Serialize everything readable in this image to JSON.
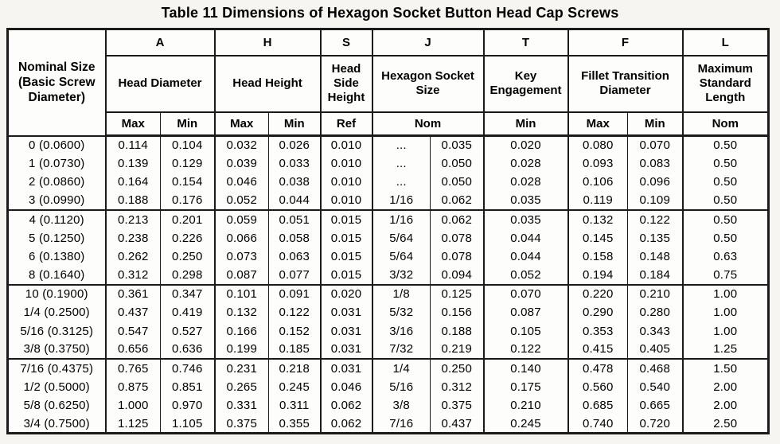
{
  "title": "Table 11 Dimensions of Hexagon Socket Button Head Cap Screws",
  "colors": {
    "border": "#1b1b1b",
    "text": "#000000",
    "page_background": "#f6f5f2",
    "cell_background": "#fdfdfc"
  },
  "table": {
    "header": {
      "nominal_label": "Nominal Size (Basic Screw Diameter)",
      "letters": [
        "A",
        "H",
        "S",
        "J",
        "T",
        "F",
        "L"
      ],
      "group_labels": [
        "Head Diameter",
        "Head Height",
        "Head Side Height",
        "Hexagon Socket Size",
        "Key Engagement",
        "Fillet Transition Diameter",
        "Maximum Standard Length"
      ],
      "sub_labels": [
        "Max",
        "Min",
        "Max",
        "Min",
        "Ref",
        "Nom",
        "Min",
        "Max",
        "Min",
        "Nom"
      ]
    },
    "groups": [
      {
        "rows": [
          [
            "0 (0.0600)",
            "0.114",
            "0.104",
            "0.032",
            "0.026",
            "0.010",
            "...",
            "0.035",
            "0.020",
            "0.080",
            "0.070",
            "0.50"
          ],
          [
            "1 (0.0730)",
            "0.139",
            "0.129",
            "0.039",
            "0.033",
            "0.010",
            "...",
            "0.050",
            "0.028",
            "0.093",
            "0.083",
            "0.50"
          ],
          [
            "2 (0.0860)",
            "0.164",
            "0.154",
            "0.046",
            "0.038",
            "0.010",
            "...",
            "0.050",
            "0.028",
            "0.106",
            "0.096",
            "0.50"
          ],
          [
            "3 (0.0990)",
            "0.188",
            "0.176",
            "0.052",
            "0.044",
            "0.010",
            "1/16",
            "0.062",
            "0.035",
            "0.119",
            "0.109",
            "0.50"
          ]
        ]
      },
      {
        "rows": [
          [
            "4 (0.1120)",
            "0.213",
            "0.201",
            "0.059",
            "0.051",
            "0.015",
            "1/16",
            "0.062",
            "0.035",
            "0.132",
            "0.122",
            "0.50"
          ],
          [
            "5 (0.1250)",
            "0.238",
            "0.226",
            "0.066",
            "0.058",
            "0.015",
            "5/64",
            "0.078",
            "0.044",
            "0.145",
            "0.135",
            "0.50"
          ],
          [
            "6 (0.1380)",
            "0.262",
            "0.250",
            "0.073",
            "0.063",
            "0.015",
            "5/64",
            "0.078",
            "0.044",
            "0.158",
            "0.148",
            "0.63"
          ],
          [
            "8 (0.1640)",
            "0.312",
            "0.298",
            "0.087",
            "0.077",
            "0.015",
            "3/32",
            "0.094",
            "0.052",
            "0.194",
            "0.184",
            "0.75"
          ]
        ]
      },
      {
        "rows": [
          [
            "10 (0.1900)",
            "0.361",
            "0.347",
            "0.101",
            "0.091",
            "0.020",
            "1/8",
            "0.125",
            "0.070",
            "0.220",
            "0.210",
            "1.00"
          ],
          [
            "1/4 (0.2500)",
            "0.437",
            "0.419",
            "0.132",
            "0.122",
            "0.031",
            "5/32",
            "0.156",
            "0.087",
            "0.290",
            "0.280",
            "1.00"
          ],
          [
            "5/16 (0.3125)",
            "0.547",
            "0.527",
            "0.166",
            "0.152",
            "0.031",
            "3/16",
            "0.188",
            "0.105",
            "0.353",
            "0.343",
            "1.00"
          ],
          [
            "3/8 (0.3750)",
            "0.656",
            "0.636",
            "0.199",
            "0.185",
            "0.031",
            "7/32",
            "0.219",
            "0.122",
            "0.415",
            "0.405",
            "1.25"
          ]
        ]
      },
      {
        "rows": [
          [
            "7/16 (0.4375)",
            "0.765",
            "0.746",
            "0.231",
            "0.218",
            "0.031",
            "1/4",
            "0.250",
            "0.140",
            "0.478",
            "0.468",
            "1.50"
          ],
          [
            "1/2 (0.5000)",
            "0.875",
            "0.851",
            "0.265",
            "0.245",
            "0.046",
            "5/16",
            "0.312",
            "0.175",
            "0.560",
            "0.540",
            "2.00"
          ],
          [
            "5/8 (0.6250)",
            "1.000",
            "0.970",
            "0.331",
            "0.311",
            "0.062",
            "3/8",
            "0.375",
            "0.210",
            "0.685",
            "0.665",
            "2.00"
          ],
          [
            "3/4 (0.7500)",
            "1.125",
            "1.105",
            "0.375",
            "0.355",
            "0.062",
            "7/16",
            "0.437",
            "0.245",
            "0.740",
            "0.720",
            "2.50"
          ]
        ]
      }
    ]
  }
}
